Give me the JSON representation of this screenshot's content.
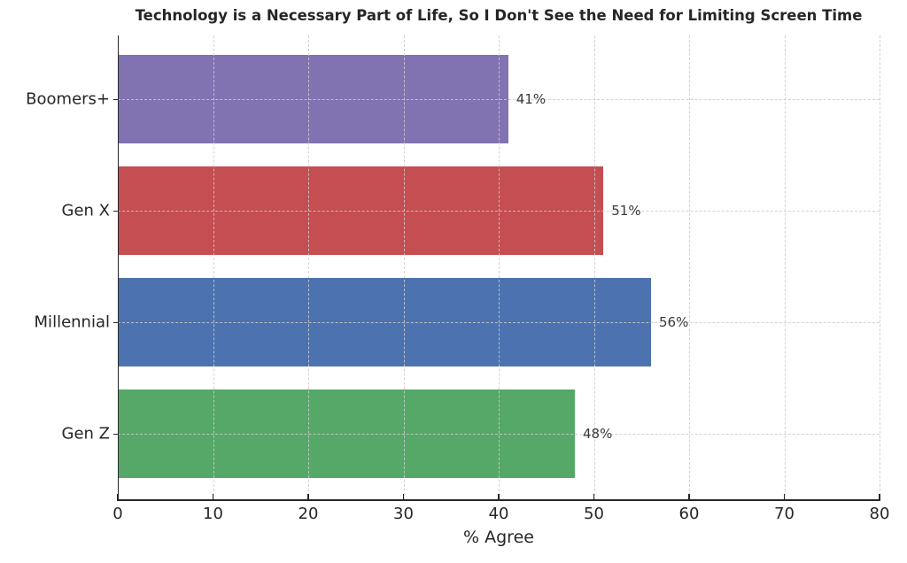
{
  "chart_data": {
    "type": "bar",
    "orientation": "horizontal",
    "title": "Technology is a Necessary Part of Life, So I Don't See the Need for Limiting Screen Time",
    "xlabel": "% Agree",
    "ylabel": "",
    "categories": [
      "Boomers+",
      "Gen X",
      "Millennial",
      "Gen Z"
    ],
    "values": [
      41,
      51,
      56,
      48
    ],
    "value_labels": [
      "41%",
      "51%",
      "56%",
      "48%"
    ],
    "bar_colors": [
      "#8172B2",
      "#C44E52",
      "#4C72B0",
      "#55A868"
    ],
    "xlim": [
      0,
      80
    ],
    "xticks": [
      0,
      10,
      20,
      30,
      40,
      50,
      60,
      70,
      80
    ],
    "grid": "dashed",
    "legend": "none",
    "text_color": "#262626",
    "value_label_color": "#3a3a3a",
    "grid_color": "#cccccc",
    "spine_color": "#262626",
    "background_color": "#ffffff"
  }
}
